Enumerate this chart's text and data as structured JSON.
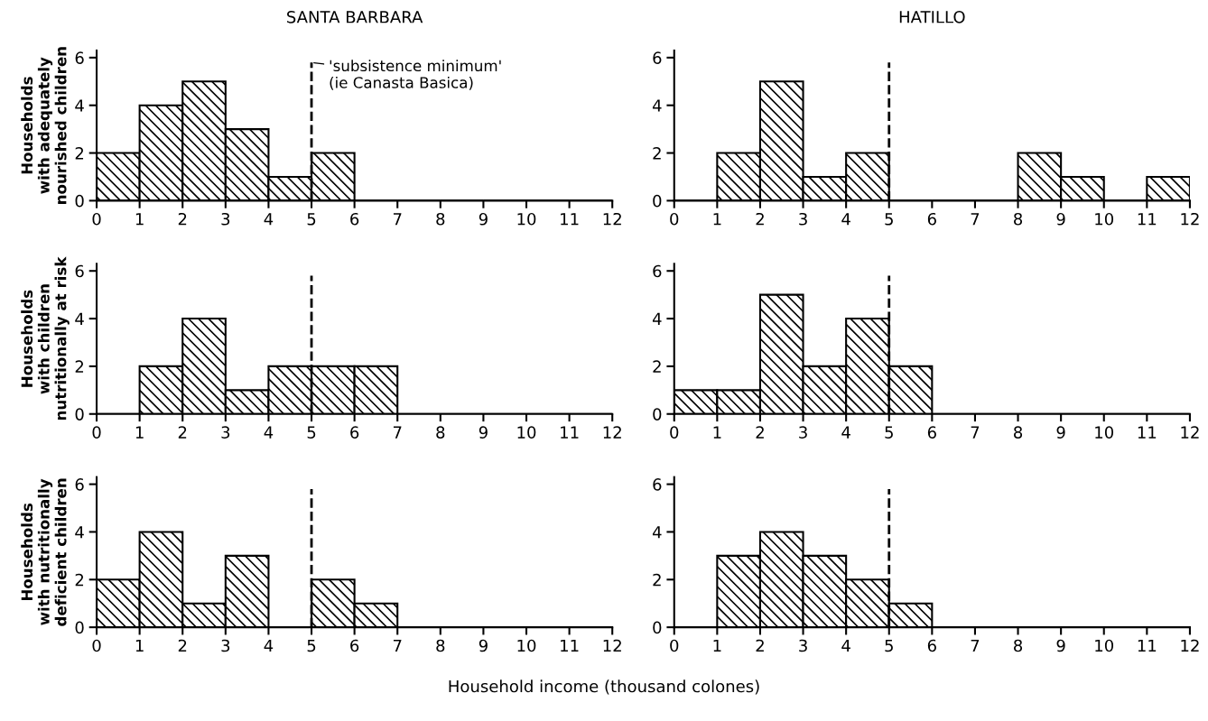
{
  "chart_data": [
    {
      "type": "histogram",
      "title": "SANTA BARBARA",
      "ylabel": "Households\nwith adequately\nnourished children",
      "bins": [
        0,
        1,
        2,
        3,
        4,
        5,
        6,
        7,
        8,
        9,
        10,
        11,
        12
      ],
      "values": [
        2,
        4,
        5,
        3,
        1,
        2,
        0,
        0,
        0,
        0,
        0,
        0
      ],
      "color": "#000000",
      "xlim": [
        0,
        12
      ],
      "ylim": [
        0,
        6.3
      ],
      "xticks": [
        0,
        1,
        2,
        3,
        4,
        5,
        6,
        7,
        8,
        9,
        10,
        11,
        12
      ],
      "yticks": [
        0,
        2,
        4,
        6
      ],
      "grid": false,
      "ref_lines": [
        {
          "axis": "x",
          "value": 5,
          "label": "'subsistence minimum'\n(ie Canasta Basica)",
          "line_style": "dashed"
        }
      ]
    },
    {
      "type": "histogram",
      "title": "HATILLO",
      "bins": [
        0,
        1,
        2,
        3,
        4,
        5,
        6,
        7,
        8,
        9,
        10,
        11,
        12
      ],
      "values": [
        0,
        2,
        5,
        1,
        2,
        0,
        0,
        0,
        2,
        1,
        0,
        1
      ],
      "color": "#000000",
      "xlim": [
        0,
        12
      ],
      "ylim": [
        0,
        6.3
      ],
      "xticks": [
        0,
        1,
        2,
        3,
        4,
        5,
        6,
        7,
        8,
        9,
        10,
        11,
        12
      ],
      "yticks": [
        0,
        2,
        4,
        6
      ],
      "grid": false,
      "ref_lines": [
        {
          "axis": "x",
          "value": 5,
          "line_style": "dashed"
        }
      ]
    },
    {
      "type": "histogram",
      "ylabel": "Households\nwith children\nnutritionally at risk",
      "bins": [
        0,
        1,
        2,
        3,
        4,
        5,
        6,
        7,
        8,
        9,
        10,
        11,
        12
      ],
      "values": [
        0,
        2,
        4,
        1,
        2,
        2,
        2,
        0,
        0,
        0,
        0,
        0
      ],
      "color": "#000000",
      "xlim": [
        0,
        12
      ],
      "ylim": [
        0,
        6.3
      ],
      "xticks": [
        0,
        1,
        2,
        3,
        4,
        5,
        6,
        7,
        8,
        9,
        10,
        11,
        12
      ],
      "yticks": [
        0,
        2,
        4,
        6
      ],
      "grid": false,
      "ref_lines": [
        {
          "axis": "x",
          "value": 5,
          "line_style": "dashed"
        }
      ]
    },
    {
      "type": "histogram",
      "bins": [
        0,
        1,
        2,
        3,
        4,
        5,
        6,
        7,
        8,
        9,
        10,
        11,
        12
      ],
      "values": [
        1,
        1,
        5,
        2,
        4,
        2,
        0,
        0,
        0,
        0,
        0,
        0
      ],
      "color": "#000000",
      "xlim": [
        0,
        12
      ],
      "ylim": [
        0,
        6.3
      ],
      "xticks": [
        0,
        1,
        2,
        3,
        4,
        5,
        6,
        7,
        8,
        9,
        10,
        11,
        12
      ],
      "yticks": [
        0,
        2,
        4,
        6
      ],
      "grid": false,
      "ref_lines": [
        {
          "axis": "x",
          "value": 5,
          "line_style": "dashed"
        }
      ]
    },
    {
      "type": "histogram",
      "ylabel": "Households\nwith nutritionally\ndeficient children",
      "bins": [
        0,
        1,
        2,
        3,
        4,
        5,
        6,
        7,
        8,
        9,
        10,
        11,
        12
      ],
      "values": [
        2,
        4,
        1,
        3,
        0,
        2,
        1,
        0,
        0,
        0,
        0,
        0
      ],
      "color": "#000000",
      "xlim": [
        0,
        12
      ],
      "ylim": [
        0,
        6.3
      ],
      "xticks": [
        0,
        1,
        2,
        3,
        4,
        5,
        6,
        7,
        8,
        9,
        10,
        11,
        12
      ],
      "yticks": [
        0,
        2,
        4,
        6
      ],
      "grid": false,
      "ref_lines": [
        {
          "axis": "x",
          "value": 5,
          "line_style": "dashed"
        }
      ]
    },
    {
      "type": "histogram",
      "xlabel": "Household income (thousand colones)",
      "bins": [
        0,
        1,
        2,
        3,
        4,
        5,
        6,
        7,
        8,
        9,
        10,
        11,
        12
      ],
      "values": [
        0,
        3,
        4,
        3,
        2,
        1,
        0,
        0,
        0,
        0,
        0,
        0
      ],
      "color": "#000000",
      "xlim": [
        0,
        12
      ],
      "ylim": [
        0,
        6.3
      ],
      "xticks": [
        0,
        1,
        2,
        3,
        4,
        5,
        6,
        7,
        8,
        9,
        10,
        11,
        12
      ],
      "yticks": [
        0,
        2,
        4,
        6
      ],
      "grid": false,
      "ref_lines": [
        {
          "axis": "x",
          "value": 5,
          "line_style": "dashed"
        }
      ]
    }
  ]
}
